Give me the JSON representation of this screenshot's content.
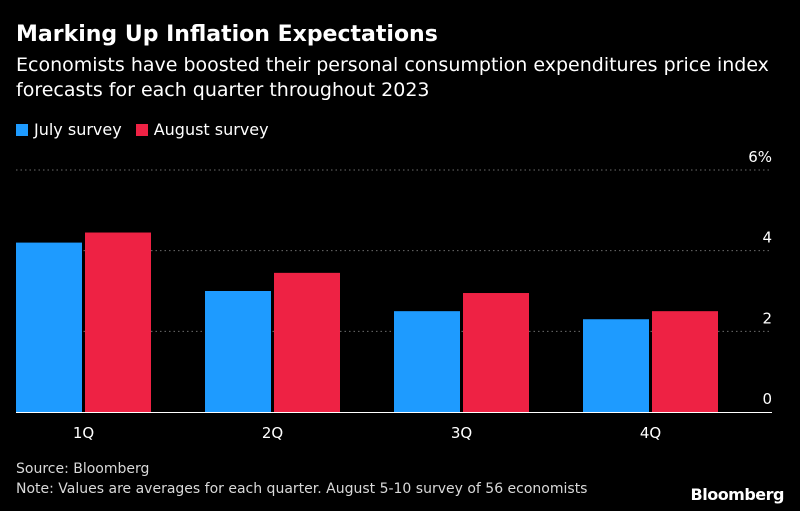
{
  "title": "Marking Up Inflation Expectations",
  "subtitle": "Economists have boosted their personal consumption expenditures price index forecasts for each quarter throughout 2023",
  "legend": [
    {
      "label": "July survey",
      "color": "#1e9bff"
    },
    {
      "label": "August survey",
      "color": "#ee2244"
    }
  ],
  "chart_data": {
    "type": "bar",
    "categories": [
      "1Q",
      "2Q",
      "3Q",
      "4Q"
    ],
    "series": [
      {
        "name": "July survey",
        "color": "#1e9bff",
        "values": [
          4.2,
          3.0,
          2.5,
          2.3
        ]
      },
      {
        "name": "August survey",
        "color": "#ee2244",
        "values": [
          4.45,
          3.45,
          2.95,
          2.5
        ]
      }
    ],
    "ylim": [
      0,
      6
    ],
    "yticks": [
      0,
      2,
      4,
      6
    ],
    "ytick_labels": [
      "0",
      "2",
      "4",
      "6%"
    ],
    "grid": true,
    "legend_position": "top-left"
  },
  "source": "Source: Bloomberg",
  "note": "Note: Values are averages for each quarter. August 5-10 survey of 56 economists",
  "logo": "Bloomberg"
}
